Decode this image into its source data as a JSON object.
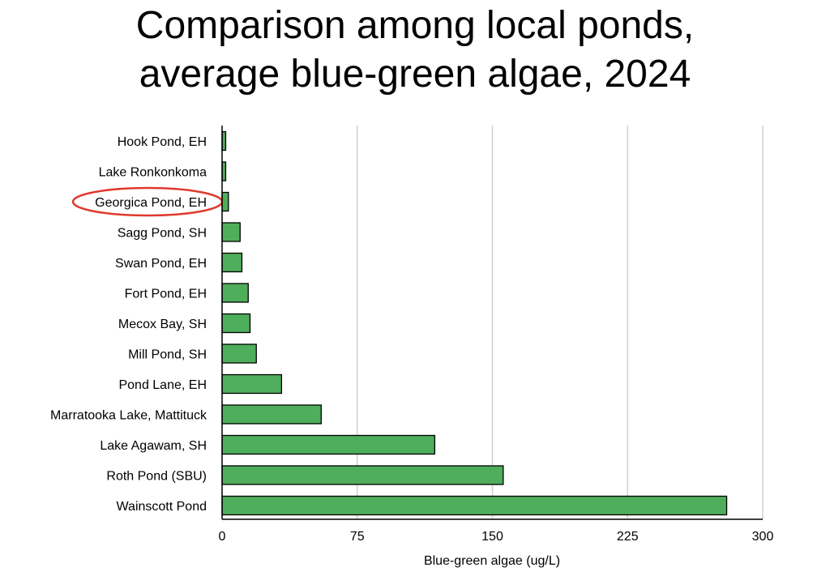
{
  "title_line1": "Comparison among local ponds,",
  "title_line2": "average blue-green algae, 2024",
  "colors": {
    "bar_fill": "#4fae5b",
    "bar_stroke": "#000000",
    "grid": "#d0d0d0",
    "highlight": "#e03a2e"
  },
  "highlight_category": "Georgica Pond, EH",
  "chart_data": {
    "type": "bar",
    "orientation": "horizontal",
    "title": "Comparison among local ponds, average blue-green algae, 2024",
    "xlabel": "Blue-green algae (ug/L)",
    "ylabel": "",
    "xlim": [
      0,
      300
    ],
    "xticks": [
      0,
      75,
      150,
      225,
      300
    ],
    "grid": "vertical",
    "categories": [
      "Hook Pond, EH",
      "Lake Ronkonkoma",
      "Georgica Pond, EH",
      "Sagg Pond, SH",
      "Swan Pond, EH",
      "Fort Pond, EH",
      "Mecox Bay, SH",
      "Mill Pond, SH",
      "Pond Lane, EH",
      "Marratooka Lake, Mattituck",
      "Lake Agawam, SH",
      "Roth Pond (SBU)",
      "Wainscott Pond"
    ],
    "values": [
      2,
      2,
      3.5,
      10,
      11,
      14.5,
      15.5,
      19,
      33,
      55,
      118,
      156,
      280
    ]
  }
}
